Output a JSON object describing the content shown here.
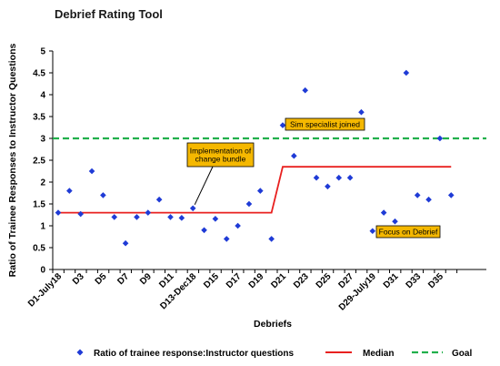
{
  "chart_data": {
    "type": "scatter",
    "title": "Debrief Rating Tool",
    "xlabel": "Debriefs",
    "ylabel": "Ratio of Trainee Responses to Instructor Questions",
    "ylim": [
      0,
      5
    ],
    "yticks": [
      "0",
      "0.5",
      "1",
      "1.5",
      "2",
      "2.5",
      "3",
      "3.5",
      "4",
      "4.5",
      "5"
    ],
    "xtick_labels": [
      "D1-July18",
      "D3",
      "D5",
      "D7",
      "D9",
      "D11",
      "D13-Dec18",
      "D15",
      "D17",
      "D19",
      "D21",
      "D23",
      "D25",
      "D27",
      "D29-July19",
      "D31",
      "D33",
      "D35"
    ],
    "series": [
      {
        "name": "Ratio of trainee response:Instructor questions",
        "marker": "diamond",
        "color": "#1f3bd6",
        "x": [
          1,
          2,
          3,
          4,
          5,
          6,
          7,
          8,
          9,
          10,
          11,
          12,
          13,
          14,
          15,
          16,
          17,
          18,
          19,
          20,
          21,
          22,
          23,
          24,
          25,
          26,
          27,
          28,
          29,
          30,
          31,
          32,
          33,
          34,
          35,
          36
        ],
        "values": [
          1.3,
          1.8,
          1.27,
          2.25,
          1.7,
          1.2,
          0.6,
          1.2,
          1.3,
          1.6,
          1.2,
          1.18,
          1.4,
          0.9,
          1.16,
          0.7,
          1.0,
          1.5,
          1.8,
          0.7,
          3.3,
          2.6,
          4.1,
          2.1,
          1.9,
          2.1,
          2.1,
          3.6,
          0.88,
          1.3,
          1.1,
          4.5,
          1.7,
          1.6,
          3.0,
          1.7
        ]
      },
      {
        "name": "Median",
        "style": "line",
        "color": "#e8201f",
        "segments": [
          {
            "x": [
              1,
              20
            ],
            "y": 1.3
          },
          {
            "x": [
              21,
              36
            ],
            "y": 2.35
          }
        ]
      },
      {
        "name": "Goal",
        "style": "dashed",
        "color": "#21b04b",
        "y": 3
      }
    ],
    "annotations": [
      {
        "text": "Implementation of change bundle",
        "lines": [
          "Implementation of",
          "change bundle"
        ],
        "arrow_to_x": 13
      },
      {
        "text": "Sim specialist joined",
        "lines": [
          "Sim specialist joined"
        ]
      },
      {
        "text": "Focus on Debrief",
        "lines": [
          "Focus on Debrief"
        ]
      }
    ],
    "legend": {
      "position": "bottom"
    },
    "grid": false
  },
  "colors": {
    "annotation_fill": "#f5b800",
    "axis": "#000000"
  }
}
